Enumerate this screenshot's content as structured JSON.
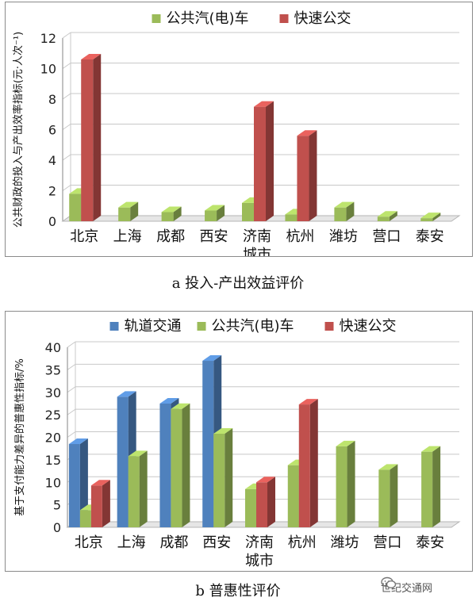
{
  "colors": {
    "rail": "#4f81bd",
    "bus": "#9bbb59",
    "brt": "#c0504d",
    "grid": "#c8c8c8",
    "floor": "#e6e6e6"
  },
  "charts": [
    {
      "caption": "a 投入-产出效益评价",
      "chart_data": {
        "type": "bar",
        "title": "",
        "xlabel": "城市",
        "ylabel": "公共财政的投入与产出效率指标(元·人次⁻¹)",
        "categories": [
          "北京",
          "上海",
          "成都",
          "西安",
          "济南",
          "杭州",
          "潍坊",
          "营口",
          "泰安"
        ],
        "yticks": [
          "0",
          "2",
          "4",
          "6",
          "8",
          "10",
          "12"
        ],
        "ylim": [
          0,
          12
        ],
        "grid": true,
        "legend_position": "top",
        "series": [
          {
            "name": "公共汽(电)车",
            "color": "#9bbb59",
            "values": [
              1.8,
              0.9,
              0.6,
              0.7,
              1.2,
              0.45,
              0.9,
              0.3,
              0.2
            ]
          },
          {
            "name": "快速公交",
            "color": "#c0504d",
            "values": [
              10.6,
              null,
              null,
              null,
              7.5,
              5.6,
              null,
              null,
              null
            ]
          }
        ]
      }
    },
    {
      "caption": "b 普惠性评价",
      "chart_data": {
        "type": "bar",
        "title": "",
        "xlabel": "城市",
        "ylabel": "基于支付能力差异的普惠性指标/%",
        "categories": [
          "北京",
          "上海",
          "成都",
          "西安",
          "济南",
          "杭州",
          "潍坊",
          "营口",
          "泰安"
        ],
        "yticks": [
          "0",
          "5",
          "10",
          "15",
          "20",
          "25",
          "30",
          "35",
          "40"
        ],
        "ylim": [
          0,
          40
        ],
        "grid": true,
        "legend_position": "top",
        "series": [
          {
            "name": "轨道交通",
            "color": "#4f81bd",
            "values": [
              18.5,
              29,
              27.5,
              37,
              null,
              null,
              null,
              null,
              null
            ]
          },
          {
            "name": "公共汽(电)车",
            "color": "#9bbb59",
            "values": [
              3.8,
              15.8,
              26.3,
              20.8,
              8.5,
              13.8,
              18,
              12.8,
              16.8
            ]
          },
          {
            "name": "快速公交",
            "color": "#c0504d",
            "values": [
              9.3,
              null,
              null,
              null,
              10,
              27.3,
              null,
              null,
              null
            ]
          }
        ]
      }
    }
  ],
  "watermark": {
    "text": "世纪交通网",
    "icon": "wechat-icon"
  }
}
